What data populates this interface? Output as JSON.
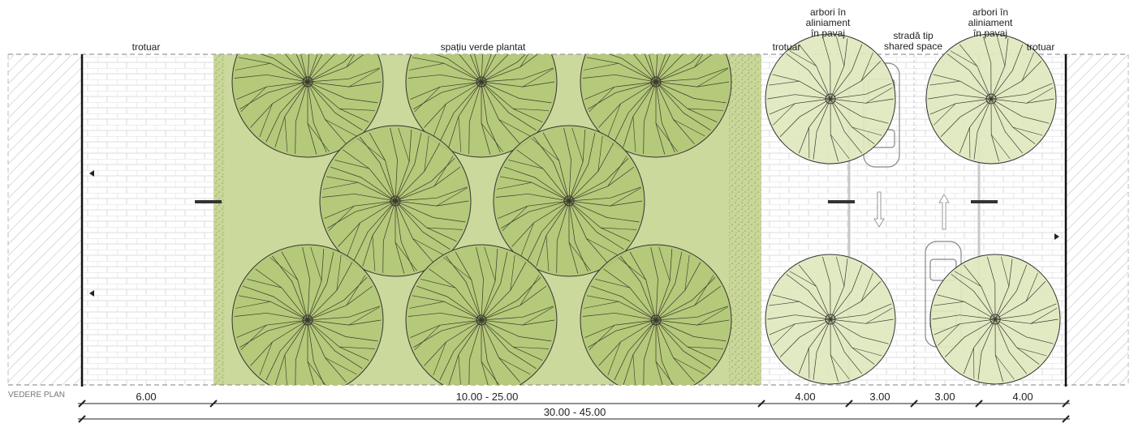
{
  "labels": {
    "sidewalk_left": "trotuar",
    "green_space": "spațiu verde plantat",
    "sidewalk_mid": "trotuar",
    "trees_1": [
      "arbori în",
      "aliniament",
      "în pavaj"
    ],
    "street": [
      "stradă tip",
      "shared space"
    ],
    "trees_2": [
      "arbori în",
      "aliniament",
      "în pavaj"
    ],
    "sidewalk_right": "trotuar"
  },
  "caption": "VEDERE PLAN",
  "dimensions": {
    "d1": "6.00",
    "d2": "10.00 - 25.00",
    "d3": "4.00",
    "d4": "3.00",
    "d5": "3.00",
    "d6": "4.00",
    "total": "30.00 - 45.00"
  },
  "colors": {
    "green_space": "#cbd99c",
    "tree_canopy": "#b3c877",
    "street_tree": "#dfe8bf",
    "hatch_strip": "#c9d79a",
    "paving": "#ffffff",
    "outline": "#222222"
  }
}
